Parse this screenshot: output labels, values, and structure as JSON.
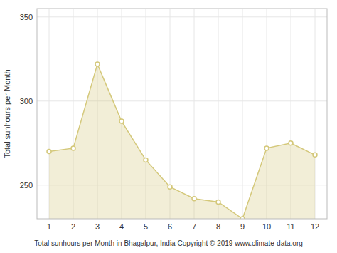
{
  "chart_data": {
    "type": "area",
    "x": [
      1,
      2,
      3,
      4,
      5,
      6,
      7,
      8,
      9,
      10,
      11,
      12
    ],
    "values": [
      270,
      272,
      322,
      288,
      265,
      249,
      242,
      240,
      230,
      272,
      275,
      268
    ],
    "color": "#D4C87A",
    "marker": "circle",
    "xlabel": "Total sunhours per Month in Bhagalpur, India Copyright © 2019 www.climate-data.org",
    "ylabel": "Total sunhours per Month",
    "xlim": [
      0.5,
      12.5
    ],
    "ylim": [
      230,
      355
    ],
    "xticks": [
      1,
      2,
      3,
      4,
      5,
      6,
      7,
      8,
      9,
      10,
      11,
      12
    ],
    "yticks": [
      250,
      300,
      350
    ],
    "grid": true
  }
}
